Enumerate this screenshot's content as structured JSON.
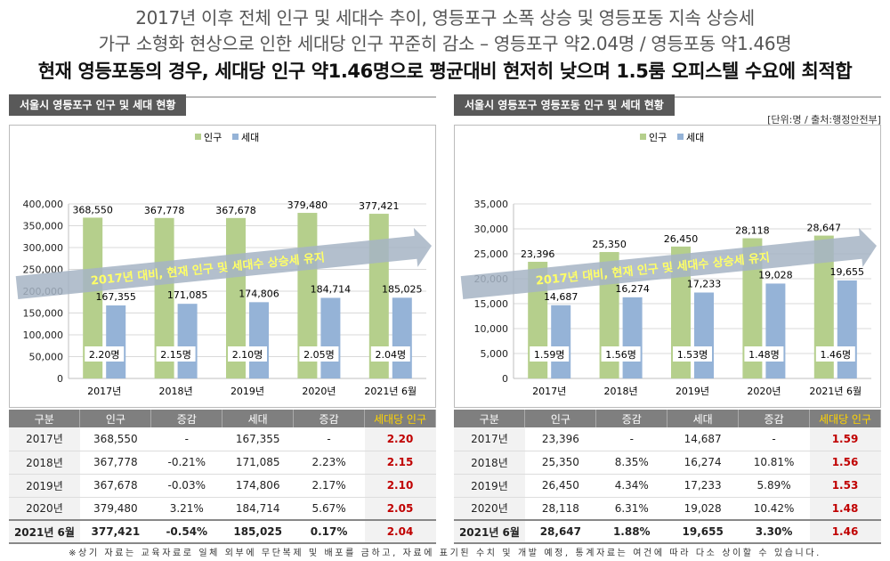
{
  "headings": {
    "line1": "2017년 이후 전체 인구 및 세대수 추이, 영등포구 소폭 상승 및 영등포동 지속 상승세",
    "line2": "가구 소형화 현상으로 인한 세대당 인구 꾸준히 감소 – 영등포구 약2.04명 / 영등포동 약1.46명",
    "line3": "현재 영등포동의 경우, 세대당 인구 약1.46명으로 평균대비 현저히 낮으며 1.5룸 오피스텔 수요에 최적합"
  },
  "unit_note": "[단위:명 / 출처:행정안전부]",
  "footer_note": "※상기 자료는 교육자료로 일체 외부에 무단복제 및 배포를 금하고, 자료에 표기된 수치 및 개발 예정, 통계자료는 여건에 따라 다소 상이할 수 있습니다.",
  "colors": {
    "population": "#b5cf8c",
    "households": "#95b3d7",
    "trend_arrow": "#a6b4c4",
    "trend_text": "#ffff66",
    "highlight": "#c00000"
  },
  "table_headers": [
    "구분",
    "인구",
    "증감",
    "세대",
    "증감",
    "세대당 인구"
  ],
  "panels": {
    "left": {
      "title": "서울시 영등포구 인구 및 세대 현황",
      "trend_text": "2017년 대비, 현재 인구 및 세대수 상승세 유지",
      "rows": [
        [
          "2017년",
          "368,550",
          "-",
          "167,355",
          "-",
          "2.20"
        ],
        [
          "2018년",
          "367,778",
          "-0.21%",
          "171,085",
          "2.23%",
          "2.15"
        ],
        [
          "2019년",
          "367,678",
          "-0.03%",
          "174,806",
          "2.17%",
          "2.10"
        ],
        [
          "2020년",
          "379,480",
          "3.21%",
          "184,714",
          "5.67%",
          "2.05"
        ],
        [
          "2021년 6월",
          "377,421",
          "-0.54%",
          "185,025",
          "0.17%",
          "2.04"
        ]
      ]
    },
    "right": {
      "title": "서울시 영등포구 영등포동 인구 및 세대 현황",
      "trend_text": "2017년 대비, 현재 인구 및 세대수 상승세 유지",
      "rows": [
        [
          "2017년",
          "23,396",
          "-",
          "14,687",
          "-",
          "1.59"
        ],
        [
          "2018년",
          "25,350",
          "8.35%",
          "16,274",
          "10.81%",
          "1.56"
        ],
        [
          "2019년",
          "26,450",
          "4.34%",
          "17,233",
          "5.89%",
          "1.53"
        ],
        [
          "2020년",
          "28,118",
          "6.31%",
          "19,028",
          "10.42%",
          "1.48"
        ],
        [
          "2021년 6월",
          "28,647",
          "1.88%",
          "19,655",
          "3.30%",
          "1.46"
        ]
      ]
    }
  },
  "chart_data": [
    {
      "type": "bar",
      "title": "서울시 영등포구 인구 및 세대 현황",
      "categories": [
        "2017년",
        "2018년",
        "2019년",
        "2020년",
        "2021년 6월"
      ],
      "series": [
        {
          "name": "인구",
          "values": [
            368550,
            367778,
            367678,
            379480,
            377421
          ]
        },
        {
          "name": "세대",
          "values": [
            167355,
            171085,
            174806,
            184714,
            185025
          ]
        }
      ],
      "per_household": [
        "2.20명",
        "2.15명",
        "2.10명",
        "2.05명",
        "2.04명"
      ],
      "ylim": [
        0,
        400000
      ],
      "yticks": [
        0,
        50000,
        100000,
        150000,
        200000,
        250000,
        300000,
        350000,
        400000
      ],
      "grid": true,
      "legend": "top-center"
    },
    {
      "type": "bar",
      "title": "서울시 영등포구 영등포동 인구 및 세대 현황",
      "categories": [
        "2017년",
        "2018년",
        "2019년",
        "2020년",
        "2021년 6월"
      ],
      "series": [
        {
          "name": "인구",
          "values": [
            23396,
            25350,
            26450,
            28118,
            28647
          ]
        },
        {
          "name": "세대",
          "values": [
            14687,
            16274,
            17233,
            19028,
            19655
          ]
        }
      ],
      "per_household": [
        "1.59명",
        "1.56명",
        "1.53명",
        "1.48명",
        "1.46명"
      ],
      "ylim": [
        0,
        35000
      ],
      "yticks": [
        0,
        5000,
        10000,
        15000,
        20000,
        25000,
        30000,
        35000
      ],
      "grid": true,
      "legend": "top-center"
    }
  ]
}
